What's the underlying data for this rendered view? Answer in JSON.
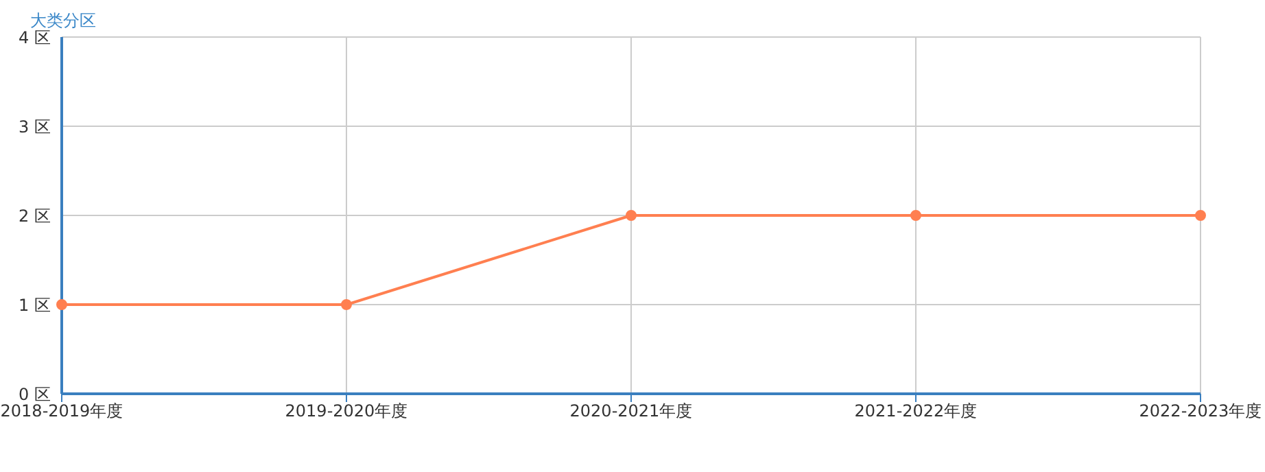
{
  "chart_data": {
    "type": "line",
    "ylabel": "大类分区",
    "categories": [
      "2018-2019年度",
      "2019-2020年度",
      "2020-2021年度",
      "2021-2022年度",
      "2022-2023年度"
    ],
    "series": [
      {
        "color": "#ff7f50",
        "values": [
          1,
          1,
          2,
          2,
          2
        ]
      }
    ],
    "ylim": [
      0,
      4
    ],
    "yticks": [
      {
        "value": 0,
        "label": "0 区"
      },
      {
        "value": 1,
        "label": "1 区"
      },
      {
        "value": 2,
        "label": "2 区"
      },
      {
        "value": 3,
        "label": "3 区"
      },
      {
        "value": 4,
        "label": "4 区"
      }
    ],
    "grid": true,
    "marker": "circle",
    "line_style": "solid",
    "legend": false
  }
}
